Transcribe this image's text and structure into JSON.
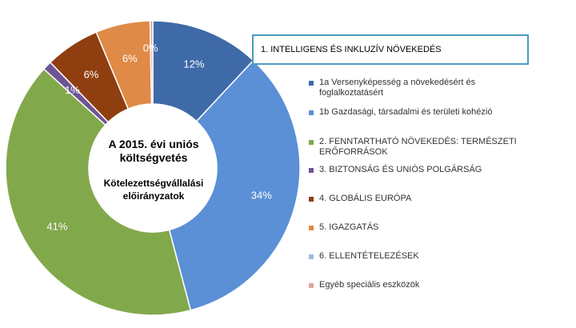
{
  "chart_data": {
    "type": "pie",
    "title": "A 2015. évi uniós költségvetés",
    "subtitle": "Kötelezettségvállalási előirányzatok",
    "group_label": "1. INTELLIGENS ÉS INKLUZÍV NÖVEKEDÉS",
    "legend_position": "right",
    "slices": [
      {
        "name": "1a Versenyképesség a növekedésért és foglalkoztatásért",
        "value": 12,
        "label": "12%",
        "color": "#3f6aa8"
      },
      {
        "name": "1b Gazdasági, társadalmi és területi kohézió",
        "value": 34,
        "label": "34%",
        "color": "#5b8fd6"
      },
      {
        "name": "2. FENNTARTHATÓ NÖVEKEDÉS: TERMÉSZETI ERŐFORRÁSOK",
        "value": 41,
        "label": "41%",
        "color": "#82a84c"
      },
      {
        "name": "3. BIZTONSÁG ÉS UNIÓS POLGÁRSÁG",
        "value": 1,
        "label": "1%",
        "color": "#6e5494"
      },
      {
        "name": "4. GLOBÁLIS EURÓPA",
        "value": 6,
        "label": "6%",
        "color": "#8f3e10"
      },
      {
        "name": "5. IGAZGATÁS",
        "value": 6,
        "label": "6%",
        "color": "#df8a47"
      },
      {
        "name": "6. ELLENTÉTELEZÉSEK",
        "value": 0,
        "label": "0%",
        "color": "#9bbbe0"
      },
      {
        "name": "Egyéb speciális eszközök",
        "value": 0.3,
        "label": "",
        "color": "#e2a5a3"
      }
    ]
  }
}
